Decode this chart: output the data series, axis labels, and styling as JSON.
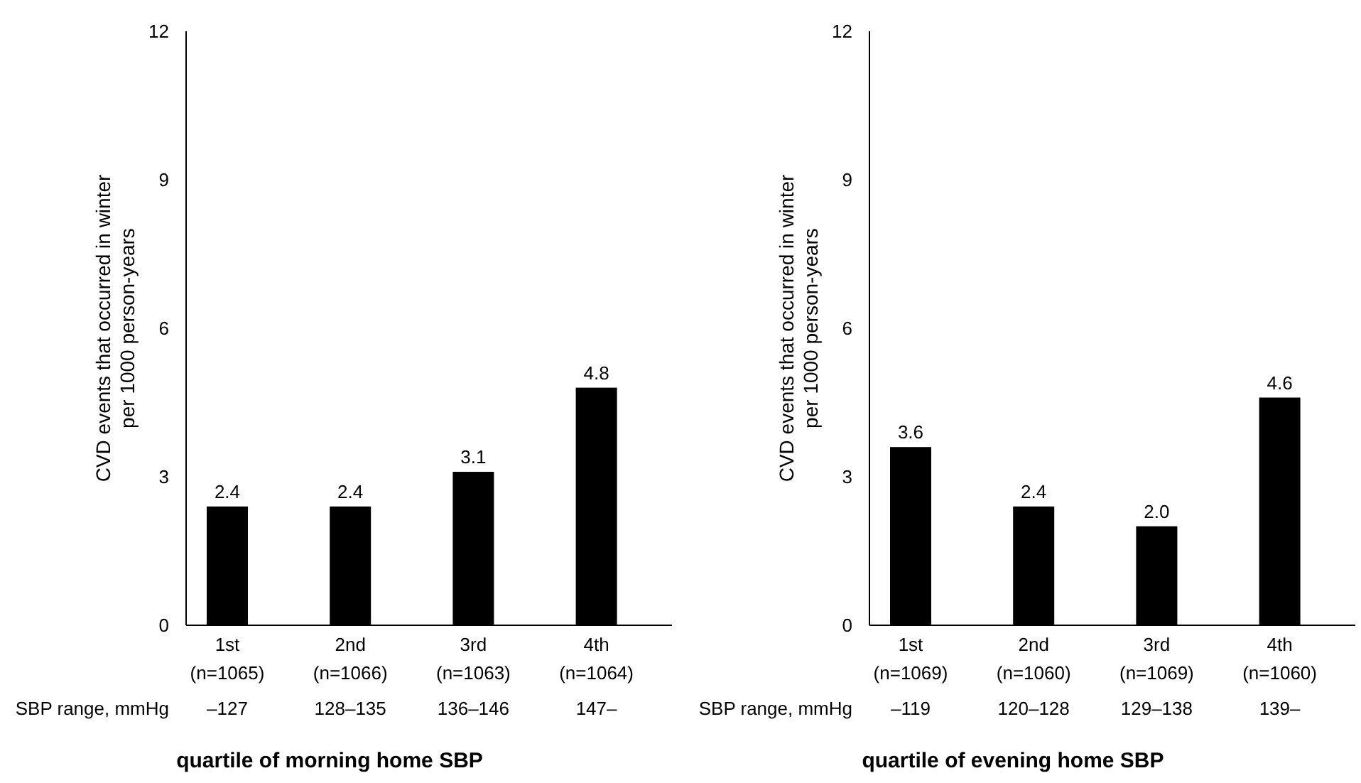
{
  "chart_data": [
    {
      "type": "bar",
      "xlabel": "quartile of morning home SBP",
      "ylabel": "CVD events that occurred in winter per 1000 person-years",
      "categories": [
        "1st (n=1065)",
        "2nd (n=1066)",
        "3rd (n=1063)",
        "4th (n=1064)"
      ],
      "values": [
        2.4,
        2.4,
        3.1,
        4.8
      ],
      "value_labels": [
        "2.4",
        "2.4",
        "3.1",
        "4.8"
      ],
      "color": "#000000",
      "ylim": [
        0,
        12
      ],
      "yticks": [
        0,
        3,
        6,
        9,
        12
      ],
      "annotations": [
        "SBP range, mmHg",
        "–127",
        "128–135",
        "136–146",
        "147–"
      ]
    },
    {
      "type": "bar",
      "xlabel": "quartile of evening home SBP",
      "ylabel": "CVD events that occurred in winter per 1000 person-years",
      "categories": [
        "1st (n=1069)",
        "2nd (n=1060)",
        "3rd (n=1069)",
        "4th (n=1060)"
      ],
      "values": [
        3.6,
        2.4,
        2.0,
        4.6
      ],
      "value_labels": [
        "3.6",
        "2.4",
        "2.0",
        "4.6"
      ],
      "color": "#000000",
      "ylim": [
        0,
        12
      ],
      "yticks": [
        0,
        3,
        6,
        9,
        12
      ],
      "annotations": [
        "SBP range, mmHg",
        "–119",
        "120–128",
        "129–138",
        "139–"
      ]
    }
  ]
}
